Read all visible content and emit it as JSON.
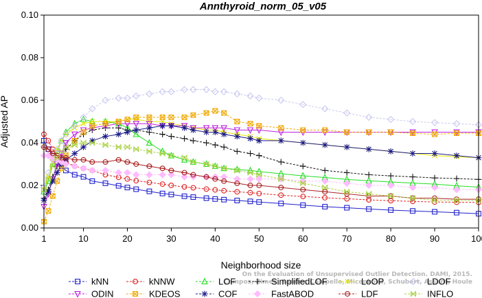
{
  "chart_data": {
    "type": "line",
    "title": "Annthyroid_norm_05_v05",
    "xlabel": "Neighborhood size",
    "ylabel": "Adjusted AP",
    "xlim": [
      1,
      100
    ],
    "ylim": [
      0,
      0.1
    ],
    "x_ticks": [
      1,
      10,
      20,
      30,
      40,
      50,
      60,
      70,
      80,
      90,
      100
    ],
    "y_ticks": [
      "0.00",
      "0.02",
      "0.04",
      "0.06",
      "0.08",
      "0.10"
    ],
    "grid": false,
    "legend_position": "bottom",
    "credit_lines": [
      "Campos, Zimek, Sander, Campello, Micenkova, Schubert, Assent, Houle",
      "On the Evaluation of Unsupervised Outlier Detection. DAMI, 2015."
    ],
    "x": [
      1,
      2,
      3,
      4,
      5,
      6,
      8,
      10,
      12,
      15,
      18,
      20,
      22,
      25,
      28,
      30,
      33,
      35,
      38,
      40,
      42,
      45,
      48,
      50,
      55,
      60,
      65,
      70,
      75,
      80,
      85,
      90,
      95,
      100
    ],
    "series": [
      {
        "name": "kNN",
        "color": "#1f1fcc",
        "marker": "square",
        "values": [
          0.041,
          0.037,
          0.034,
          0.031,
          0.029,
          0.027,
          0.025,
          0.024,
          0.022,
          0.021,
          0.0198,
          0.019,
          0.0182,
          0.0172,
          0.0162,
          0.0157,
          0.0149,
          0.0145,
          0.014,
          0.0136,
          0.0133,
          0.0129,
          0.0125,
          0.0122,
          0.0115,
          0.0107,
          0.01,
          0.0095,
          0.0089,
          0.0084,
          0.008,
          0.0076,
          0.0072,
          0.0067
        ]
      },
      {
        "name": "kNNW",
        "color": "#e02020",
        "marker": "circle",
        "values": [
          0.044,
          0.041,
          0.037,
          0.034,
          0.032,
          0.031,
          0.029,
          0.028,
          0.027,
          0.025,
          0.0238,
          0.023,
          0.0222,
          0.0214,
          0.0206,
          0.02,
          0.0193,
          0.0189,
          0.0183,
          0.0179,
          0.0175,
          0.017,
          0.0166,
          0.0162,
          0.0154,
          0.0148,
          0.0142,
          0.0137,
          0.0132,
          0.0128,
          0.0125,
          0.0122,
          0.0121,
          0.012
        ]
      },
      {
        "name": "LOF",
        "color": "#22dd22",
        "marker": "triangle-up",
        "values": [
          0.017,
          0.022,
          0.03,
          0.036,
          0.041,
          0.045,
          0.049,
          0.051,
          0.05,
          0.05,
          0.049,
          0.047,
          0.044,
          0.04,
          0.036,
          0.034,
          0.032,
          0.031,
          0.03,
          0.029,
          0.028,
          0.0275,
          0.027,
          0.0265,
          0.0255,
          0.0245,
          0.0237,
          0.0228,
          0.0222,
          0.0216,
          0.0211,
          0.0206,
          0.0198,
          0.0192
        ]
      },
      {
        "name": "SimplifiedLOF",
        "color": "#111111",
        "marker": "plus",
        "values": [
          0.014,
          0.018,
          0.024,
          0.029,
          0.033,
          0.037,
          0.041,
          0.044,
          0.046,
          0.047,
          0.047,
          0.046,
          0.046,
          0.045,
          0.044,
          0.043,
          0.042,
          0.041,
          0.04,
          0.039,
          0.038,
          0.036,
          0.035,
          0.034,
          0.031,
          0.029,
          0.027,
          0.026,
          0.025,
          0.0245,
          0.024,
          0.0235,
          0.0232,
          0.0228
        ]
      },
      {
        "name": "LoOP",
        "color": "#e6e600",
        "marker": "cross",
        "values": [
          0.018,
          0.024,
          0.031,
          0.037,
          0.041,
          0.044,
          0.047,
          0.049,
          0.05,
          0.05,
          0.05,
          0.051,
          0.051,
          0.05,
          0.05,
          0.049,
          0.048,
          0.047,
          0.046,
          0.046,
          0.045,
          0.044,
          0.043,
          0.042,
          0.041,
          0.04,
          0.039,
          0.038,
          0.037,
          0.036,
          0.035,
          0.034,
          0.0335,
          0.033
        ]
      },
      {
        "name": "LDOF",
        "color": "#c8c8f0",
        "marker": "diamond",
        "values": [
          0.019,
          0.026,
          0.032,
          0.037,
          0.041,
          0.044,
          0.048,
          0.052,
          0.056,
          0.06,
          0.061,
          0.061,
          0.062,
          0.063,
          0.064,
          0.064,
          0.065,
          0.065,
          0.065,
          0.064,
          0.064,
          0.063,
          0.062,
          0.061,
          0.06,
          0.058,
          0.056,
          0.054,
          0.052,
          0.051,
          0.05,
          0.0495,
          0.049,
          0.0485
        ]
      },
      {
        "name": "ODIN",
        "color": "#bb22dd",
        "marker": "triangle-down",
        "values": [
          0.01,
          0.016,
          0.023,
          0.03,
          0.035,
          0.04,
          0.044,
          0.046,
          0.047,
          0.048,
          0.049,
          0.049,
          0.049,
          0.049,
          0.048,
          0.048,
          0.048,
          0.047,
          0.047,
          0.047,
          0.047,
          0.046,
          0.046,
          0.046,
          0.045,
          0.045,
          0.045,
          0.045,
          0.045,
          0.045,
          0.045,
          0.045,
          0.045,
          0.045
        ]
      },
      {
        "name": "KDEOS",
        "color": "#f0a800",
        "marker": "square-x",
        "values": [
          0.003,
          0.008,
          0.015,
          0.022,
          0.028,
          0.034,
          0.041,
          0.045,
          0.048,
          0.049,
          0.05,
          0.051,
          0.052,
          0.052,
          0.052,
          0.052,
          0.052,
          0.053,
          0.054,
          0.055,
          0.054,
          0.05,
          0.049,
          0.048,
          0.047,
          0.046,
          0.046,
          0.045,
          0.045,
          0.045,
          0.0445,
          0.044,
          0.0445,
          0.0445
        ]
      },
      {
        "name": "COF",
        "color": "#1a1a88",
        "marker": "asterisk",
        "values": [
          0.013,
          0.017,
          0.022,
          0.026,
          0.03,
          0.032,
          0.035,
          0.038,
          0.041,
          0.043,
          0.044,
          0.045,
          0.046,
          0.047,
          0.048,
          0.048,
          0.047,
          0.046,
          0.045,
          0.045,
          0.044,
          0.043,
          0.042,
          0.041,
          0.041,
          0.04,
          0.039,
          0.038,
          0.037,
          0.036,
          0.035,
          0.035,
          0.034,
          0.033
        ]
      },
      {
        "name": "FastABOD",
        "color": "#ffbbff",
        "marker": "diamond-filled",
        "values": [
          0.034,
          0.034,
          0.033,
          0.032,
          0.031,
          0.03,
          0.029,
          0.028,
          0.027,
          0.027,
          0.026,
          0.026,
          0.025,
          0.025,
          0.025,
          0.025,
          0.024,
          0.024,
          0.024,
          0.024,
          0.024,
          0.023,
          0.023,
          0.023,
          0.023,
          0.022,
          0.022,
          0.021,
          0.02,
          0.02,
          0.019,
          0.019,
          0.018,
          0.018
        ]
      },
      {
        "name": "LDF",
        "color": "#aa2222",
        "marker": "circle-line",
        "values": [
          0.038,
          0.037,
          0.035,
          0.034,
          0.033,
          0.033,
          0.032,
          0.032,
          0.031,
          0.031,
          0.032,
          0.031,
          0.03,
          0.029,
          0.028,
          0.027,
          0.026,
          0.025,
          0.024,
          0.023,
          0.022,
          0.021,
          0.02,
          0.02,
          0.019,
          0.018,
          0.017,
          0.016,
          0.015,
          0.015,
          0.014,
          0.014,
          0.0135,
          0.0135
        ]
      },
      {
        "name": "INFLO",
        "color": "#a8d040",
        "marker": "bowtie",
        "values": [
          0.018,
          0.023,
          0.029,
          0.033,
          0.036,
          0.038,
          0.039,
          0.04,
          0.04,
          0.039,
          0.038,
          0.038,
          0.037,
          0.036,
          0.035,
          0.034,
          0.033,
          0.031,
          0.03,
          0.029,
          0.028,
          0.027,
          0.026,
          0.025,
          0.023,
          0.021,
          0.019,
          0.017,
          0.016,
          0.015,
          0.014,
          0.013,
          0.013,
          0.013
        ]
      }
    ]
  }
}
